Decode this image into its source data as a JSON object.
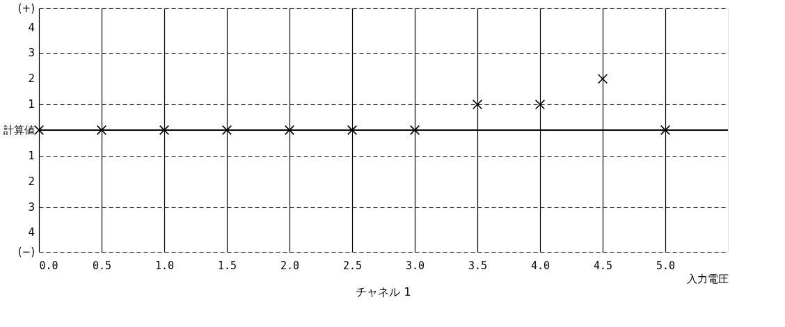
{
  "chart_data": {
    "type": "scatter",
    "title": "チャネル 1",
    "xlabel": "入力電圧",
    "x": [
      0.0,
      0.5,
      1.0,
      1.5,
      2.0,
      2.5,
      3.0,
      3.5,
      4.0,
      4.5,
      5.0
    ],
    "series": [
      {
        "color": "#000000",
        "values": [
          0,
          0,
          0,
          0,
          0,
          0,
          0,
          1,
          1,
          2,
          0
        ]
      }
    ],
    "xlim": [
      0,
      5.5
    ],
    "xticks": [
      {
        "value": 0,
        "label": "0.0"
      },
      0.5,
      {
        "value": 1,
        "label": "1.0"
      },
      1.5,
      {
        "value": 2,
        "label": "2.0"
      },
      2.5,
      {
        "value": 3,
        "label": "3.0"
      },
      3.5,
      {
        "value": 4,
        "label": "4.0"
      },
      4.5,
      {
        "value": 5,
        "label": "5.0"
      }
    ],
    "ylim": [
      -4.75,
      4.75
    ],
    "yticks": [
      {
        "value": 4.75,
        "label": "(+)"
      },
      4,
      3,
      2,
      1,
      {
        "value": 0,
        "label": "計算値"
      },
      {
        "value": -1,
        "label": "1"
      },
      {
        "value": -2,
        "label": "2"
      },
      {
        "value": -3,
        "label": "3"
      },
      {
        "value": -4,
        "label": "4"
      },
      {
        "value": -4.75,
        "label": "(−)"
      }
    ],
    "ref_lines": [
      {
        "axis": "y",
        "value": 0,
        "color": "#000000",
        "line_style": "solid"
      }
    ],
    "grid": true,
    "marker": "cross"
  }
}
